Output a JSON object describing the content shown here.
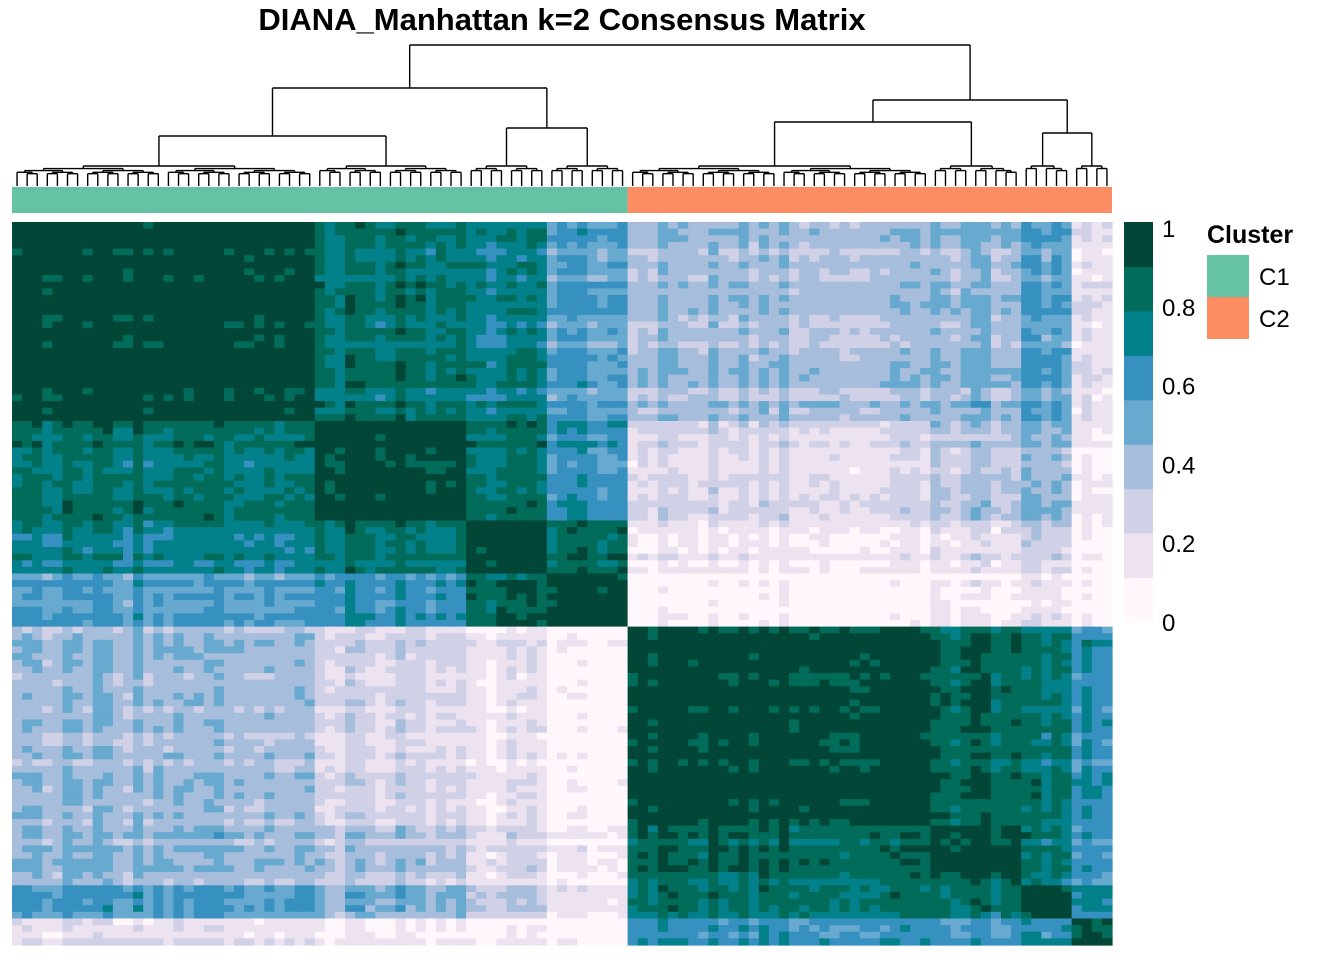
{
  "chart_data": {
    "type": "heatmap",
    "title": "DIANA_Manhattan k=2 Consensus Matrix",
    "value_range": [
      0,
      1
    ],
    "colorbar": {
      "ticks": [
        "1",
        "0.8",
        "0.6",
        "0.4",
        "0.2",
        "0"
      ],
      "colors": [
        "#fff7fb",
        "#ece2f0",
        "#d0d1e6",
        "#a6bddb",
        "#67a9cf",
        "#3690c0",
        "#02818a",
        "#016c59",
        "#014636"
      ]
    },
    "cluster_legend": {
      "title": "Cluster",
      "entries": [
        {
          "label": "C1",
          "color": "#66c2a5"
        },
        {
          "label": "C2",
          "color": "#fc8d62"
        }
      ]
    },
    "clusters": [
      {
        "name": "C1",
        "n_samples": 61,
        "color": "#66c2a5"
      },
      {
        "name": "C2",
        "n_samples": 48,
        "color": "#fc8d62"
      }
    ],
    "blocks": [
      {
        "n": 30,
        "cluster": "C1"
      },
      {
        "n": 15,
        "cluster": "C1"
      },
      {
        "n": 8,
        "cluster": "C1"
      },
      {
        "n": 8,
        "cluster": "C1"
      },
      {
        "n": 30,
        "cluster": "C2"
      },
      {
        "n": 9,
        "cluster": "C2"
      },
      {
        "n": 5,
        "cluster": "C2"
      },
      {
        "n": 4,
        "cluster": "C2"
      }
    ],
    "block_consensus": [
      [
        0.97,
        0.8,
        0.72,
        0.55,
        0.4,
        0.42,
        0.55,
        0.22
      ],
      [
        0.8,
        0.96,
        0.8,
        0.62,
        0.25,
        0.35,
        0.45,
        0.15
      ],
      [
        0.72,
        0.8,
        0.97,
        0.85,
        0.15,
        0.2,
        0.3,
        0.1
      ],
      [
        0.55,
        0.62,
        0.85,
        0.97,
        0.05,
        0.1,
        0.15,
        0.05
      ],
      [
        0.4,
        0.25,
        0.15,
        0.05,
        0.96,
        0.85,
        0.8,
        0.65
      ],
      [
        0.42,
        0.35,
        0.2,
        0.1,
        0.85,
        0.92,
        0.78,
        0.6
      ],
      [
        0.55,
        0.45,
        0.3,
        0.15,
        0.8,
        0.78,
        0.94,
        0.7
      ],
      [
        0.22,
        0.15,
        0.1,
        0.05,
        0.65,
        0.6,
        0.7,
        0.96
      ]
    ]
  }
}
